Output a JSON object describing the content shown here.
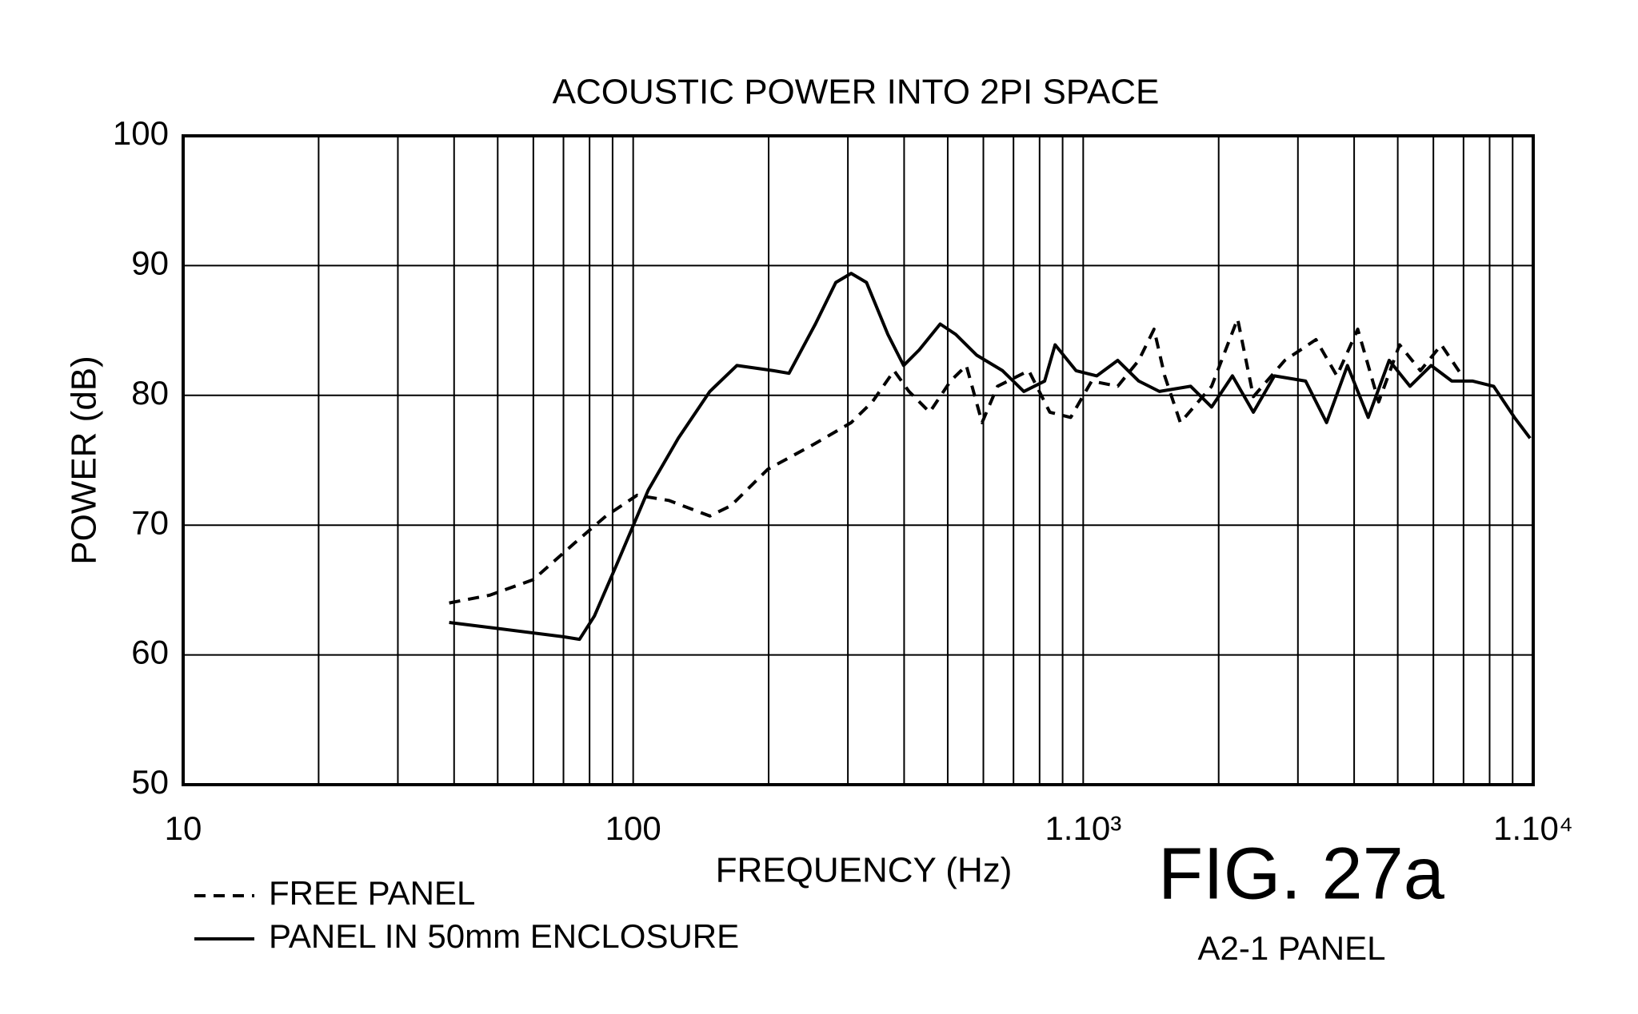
{
  "chart_data": {
    "type": "line",
    "title": "ACOUSTIC POWER INTO 2PI SPACE",
    "xlabel": "FREQUENCY (Hz)",
    "ylabel": "POWER (dB)",
    "xscale": "log",
    "xlim": [
      10,
      10000
    ],
    "xticks": [
      10,
      100,
      {
        "value": 1000,
        "label": "1.10³"
      },
      {
        "value": 10000,
        "label": "1.10⁴"
      }
    ],
    "xminorticks": [
      20,
      30,
      40,
      50,
      60,
      70,
      80,
      90,
      200,
      300,
      400,
      500,
      600,
      700,
      800,
      900,
      2000,
      3000,
      4000,
      5000,
      6000,
      7000,
      8000,
      9000
    ],
    "ylim": [
      50,
      100
    ],
    "yticks": [
      50,
      60,
      70,
      80,
      90,
      100
    ],
    "grid": true,
    "legend": "bottom-left",
    "annotations": [
      "FIG. 27a",
      "A2-1 PANEL"
    ],
    "series": [
      {
        "name": "FREE PANEL",
        "color": "#000000",
        "linestyle": "dashed",
        "x": [
          39,
          48,
          60,
          74,
          87,
          102,
          120,
          148,
          165,
          199,
          254,
          305,
          340,
          380,
          410,
          456,
          507,
          550,
          596,
          645,
          757,
          843,
          938,
          1044,
          1193,
          1329,
          1437,
          1517,
          1644,
          1929,
          2204,
          2389,
          2805,
          3289,
          3661,
          4074,
          4535,
          5047,
          5613,
          6250,
          6950
        ],
        "values": [
          64,
          64.6,
          65.8,
          68.6,
          70.7,
          72.3,
          71.9,
          70.7,
          71.5,
          74.3,
          76.3,
          77.9,
          79.5,
          81.9,
          80.3,
          78.7,
          81.1,
          82.3,
          77.9,
          80.7,
          81.9,
          78.7,
          78.3,
          81.1,
          80.7,
          82.7,
          85.1,
          81.5,
          77.9,
          80.7,
          85.9,
          79.9,
          82.7,
          84.3,
          81.5,
          85.1,
          79.5,
          83.9,
          81.9,
          83.9,
          81.5
        ]
      },
      {
        "name": "PANEL IN 50mm ENCLOSURE",
        "color": "#000000",
        "linestyle": "solid",
        "x": [
          39,
          51,
          70,
          76,
          82,
          92,
          108,
          126,
          148,
          170,
          205,
          222,
          254,
          282,
          305,
          330,
          368,
          399,
          432,
          481,
          521,
          580,
          662,
          738,
          821,
          866,
          964,
          1072,
          1193,
          1329,
          1477,
          1733,
          1929,
          2146,
          2389,
          2660,
          3120,
          3473,
          3865,
          4298,
          4786,
          5322,
          5930,
          6592,
          7340,
          8166,
          9084,
          9840
        ],
        "values": [
          62.5,
          62,
          61.4,
          61.2,
          63,
          67,
          72.7,
          76.7,
          80.3,
          82.3,
          81.9,
          81.7,
          85.5,
          88.7,
          89.4,
          88.7,
          84.7,
          82.3,
          83.5,
          85.5,
          84.7,
          83.1,
          81.9,
          80.3,
          81.1,
          83.9,
          81.9,
          81.5,
          82.7,
          81.1,
          80.3,
          80.7,
          79.1,
          81.5,
          78.7,
          81.5,
          81.1,
          77.9,
          82.3,
          78.3,
          82.7,
          80.7,
          82.3,
          81.1,
          81.1,
          80.7,
          78.3,
          76.7
        ]
      }
    ]
  }
}
